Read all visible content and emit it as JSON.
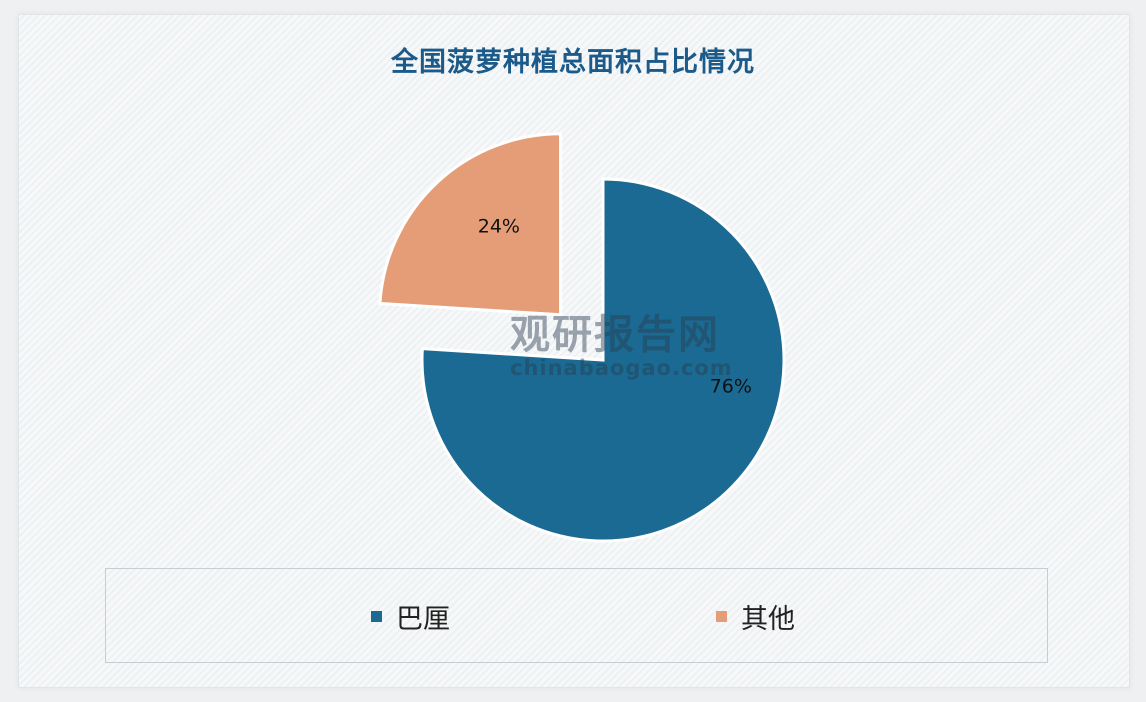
{
  "chart_data": {
    "type": "pie",
    "title": "全国菠萝种植总面积占比情况",
    "slices": [
      {
        "label": "巴厘",
        "value": 76,
        "data_label": "76%",
        "color": "#1b6a93",
        "exploded": false
      },
      {
        "label": "其他",
        "value": 24,
        "data_label": "24%",
        "color": "#e59d78",
        "exploded": true
      }
    ],
    "legend_position": "bottom"
  },
  "watermark": {
    "name": "观研报告网",
    "url": "chinabaogao.com"
  }
}
